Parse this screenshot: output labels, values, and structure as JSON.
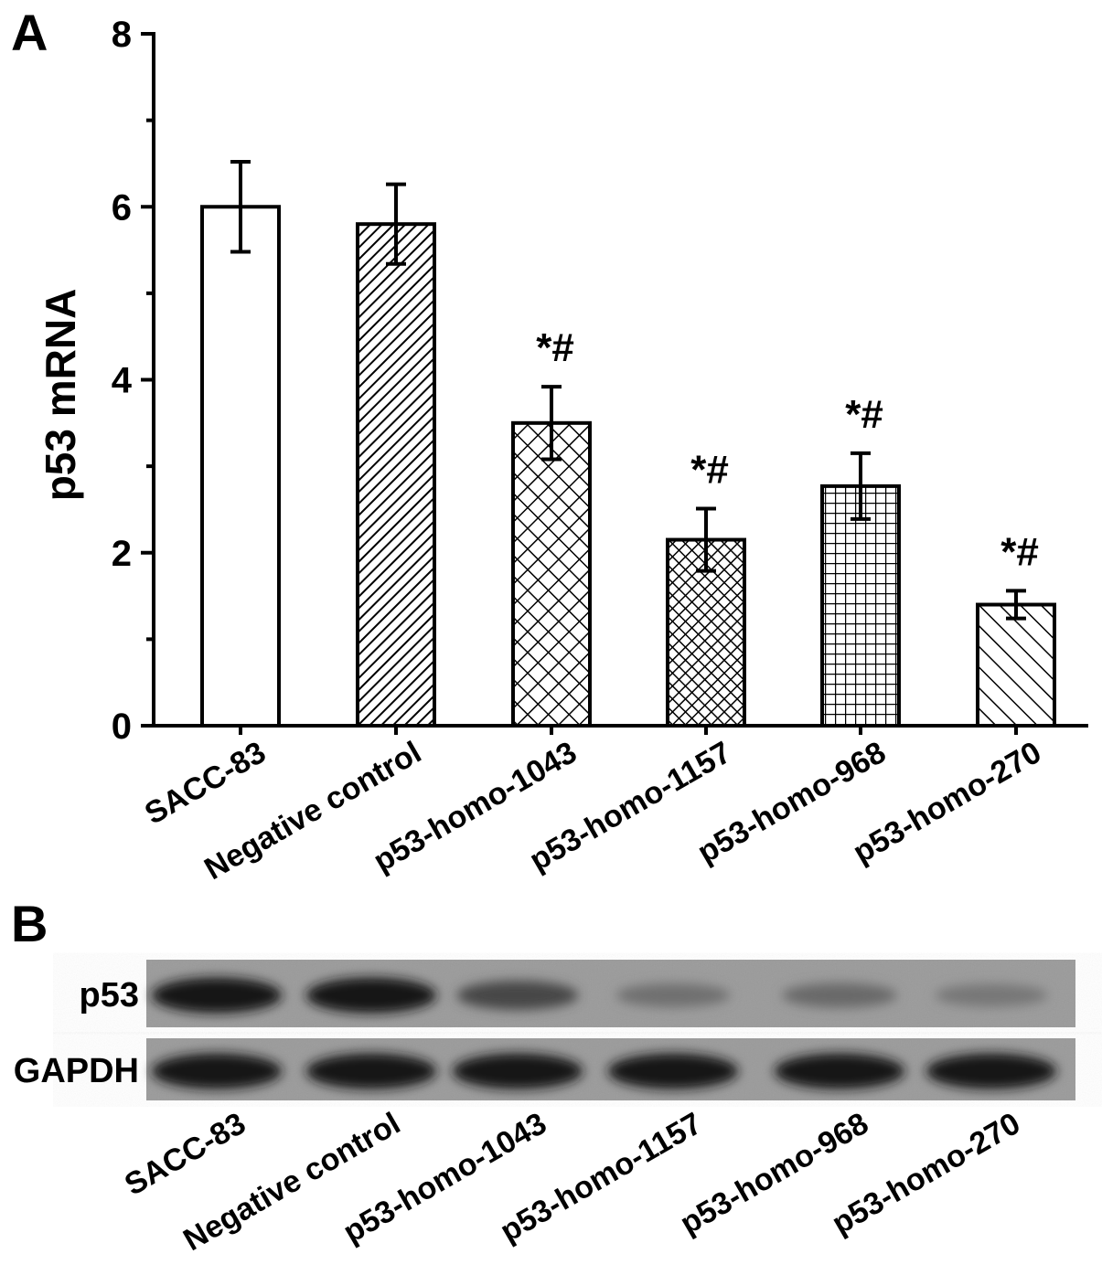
{
  "panels": {
    "a_label": "A",
    "b_label": "B"
  },
  "chart_data": {
    "type": "bar",
    "ylabel": "p53 mRNA",
    "ylim": [
      0,
      8
    ],
    "yticks": [
      "0",
      "2",
      "4",
      "6",
      "8"
    ],
    "categories": [
      "SACC-83",
      "Negative control",
      "p53-homo-1043",
      "p53-homo-1157",
      "p53-homo-968",
      "p53-homo-270"
    ],
    "values": [
      6.0,
      5.8,
      3.5,
      2.15,
      2.77,
      1.4
    ],
    "errors": [
      0.52,
      0.46,
      0.42,
      0.36,
      0.38,
      0.16
    ],
    "annotations": [
      "",
      "",
      "*#",
      "*#",
      "*#",
      "*#"
    ],
    "fill_patterns": [
      "none",
      "diagonal-dense",
      "crosshatch-diagonal",
      "crosshatch-diagonal-dense",
      "grid",
      "diagonal-back"
    ],
    "bar_color": "#000000",
    "grid": false
  },
  "blot": {
    "rows": [
      {
        "label": "p53",
        "band_intensity": [
          0.95,
          0.95,
          0.6,
          0.3,
          0.35,
          0.25
        ]
      },
      {
        "label": "GAPDH",
        "band_intensity": [
          0.95,
          0.95,
          0.95,
          0.95,
          0.95,
          0.95
        ]
      }
    ],
    "lanes": [
      "SACC-83",
      "Negative control",
      "p53-homo-1043",
      "p53-homo-1157",
      "p53-homo-968",
      "p53-homo-270"
    ],
    "background_color": "#9a9a9a"
  }
}
